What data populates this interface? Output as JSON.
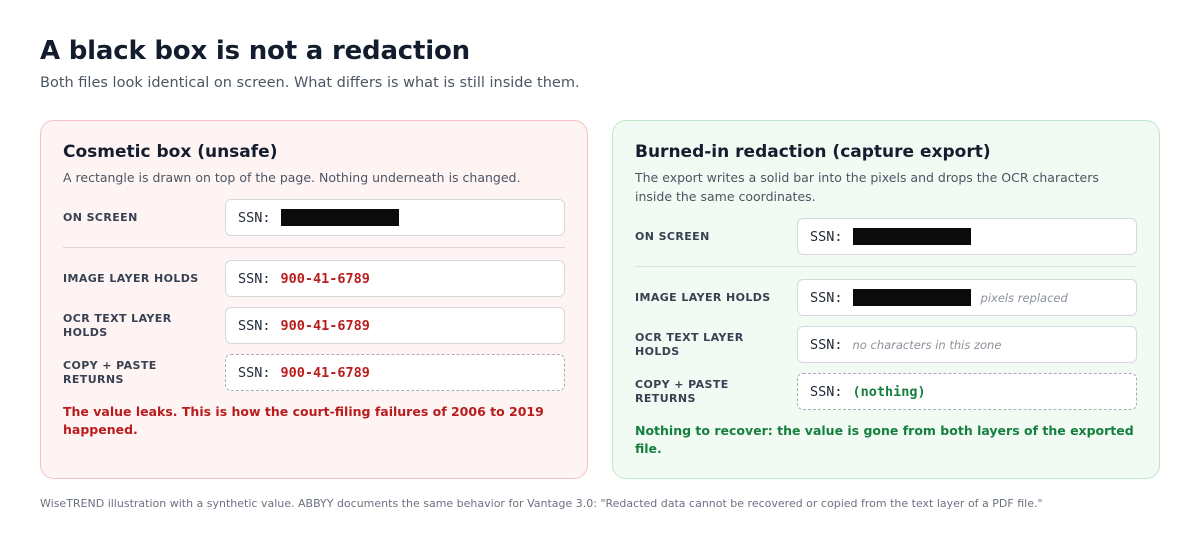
{
  "header": {
    "title": "A black box is not a redaction",
    "subtitle": "Both files look identical on screen. What differs is what is still inside them."
  },
  "unsafe": {
    "title": "Cosmetic box (unsafe)",
    "description": "A rectangle is drawn on top of the page. Nothing underneath is changed.",
    "rows": {
      "on_screen": {
        "label": "ON SCREEN",
        "prefix": "SSN:"
      },
      "image_layer": {
        "label": "IMAGE LAYER HOLDS",
        "prefix": "SSN:",
        "value": "900-41-6789"
      },
      "ocr_layer": {
        "label": "OCR TEXT LAYER HOLDS",
        "prefix": "SSN:",
        "value": "900-41-6789"
      },
      "copy_paste": {
        "label": "COPY + PASTE RETURNS",
        "prefix": "SSN:",
        "value": "900-41-6789"
      }
    },
    "verdict": "The value leaks. This is how the court-filing failures of 2006 to 2019 happened.",
    "color": "#b91c1c"
  },
  "safe": {
    "title": "Burned-in redaction (capture export)",
    "description": "The export writes a solid bar into the pixels and drops the OCR characters inside the same coordinates.",
    "rows": {
      "on_screen": {
        "label": "ON SCREEN",
        "prefix": "SSN:"
      },
      "image_layer": {
        "label": "IMAGE LAYER HOLDS",
        "prefix": "SSN:",
        "note": "pixels replaced"
      },
      "ocr_layer": {
        "label": "OCR TEXT LAYER HOLDS",
        "prefix": "SSN:",
        "note": "no characters in this zone"
      },
      "copy_paste": {
        "label": "COPY + PASTE RETURNS",
        "prefix": "SSN:",
        "value": "(nothing)"
      }
    },
    "verdict": "Nothing to recover: the value is gone from both layers of the exported file.",
    "color": "#15803d"
  },
  "footer": {
    "text": "WiseTREND illustration with a synthetic value. ABBYY documents the same behavior for Vantage 3.0: \"Redacted data cannot be recovered or copied from the text layer of a PDF file.\""
  }
}
